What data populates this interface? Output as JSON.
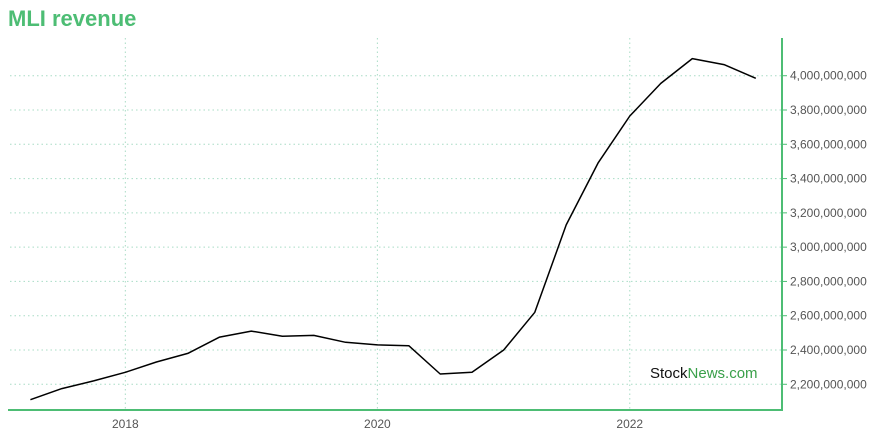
{
  "title": "MLI revenue",
  "watermark": {
    "part1": "Stock",
    "part2": "News.com"
  },
  "colors": {
    "title": "#4dbd74",
    "axis": "#4dbd74",
    "grid": "#a8dcc5",
    "line": "#000000"
  },
  "chart_data": {
    "type": "line",
    "title": "MLI revenue",
    "xlabel": "",
    "ylabel": "",
    "grid": true,
    "y_axis_side": "right",
    "xlim": [
      "2017-02-01",
      "2023-03-15"
    ],
    "ylim": [
      2050000000,
      4220000000
    ],
    "x_ticks": [
      "2018",
      "2020",
      "2022"
    ],
    "y_ticks": [
      2200000000,
      2400000000,
      2600000000,
      2800000000,
      3000000000,
      3200000000,
      3400000000,
      3600000000,
      3800000000,
      4000000000
    ],
    "y_tick_labels": [
      "2,200,000,000",
      "2,400,000,000",
      "2,600,000,000",
      "2,800,000,000",
      "3,000,000,000",
      "3,200,000,000",
      "3,400,000,000",
      "3,600,000,000",
      "3,800,000,000",
      "4,000,000,000"
    ],
    "series": [
      {
        "x": [
          "2017-04-01",
          "2017-07-01",
          "2017-10-01",
          "2018-01-01",
          "2018-04-01",
          "2018-07-01",
          "2018-10-01",
          "2019-01-01",
          "2019-04-01",
          "2019-07-01",
          "2019-10-01",
          "2020-01-01",
          "2020-04-01",
          "2020-07-01",
          "2020-10-01",
          "2021-01-01",
          "2021-04-01",
          "2021-07-01",
          "2021-10-01",
          "2022-01-01",
          "2022-04-01",
          "2022-07-01",
          "2022-10-01",
          "2023-01-01"
        ],
        "values": [
          2110000000,
          2175000000,
          2220000000,
          2270000000,
          2330000000,
          2380000000,
          2475000000,
          2510000000,
          2480000000,
          2485000000,
          2445000000,
          2430000000,
          2425000000,
          2260000000,
          2270000000,
          2400000000,
          2620000000,
          3130000000,
          3490000000,
          3765000000,
          3955000000,
          4100000000,
          4065000000,
          3985000000
        ]
      }
    ]
  }
}
